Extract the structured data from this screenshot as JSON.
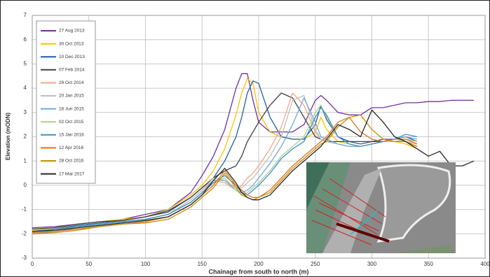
{
  "chart_data": {
    "type": "line",
    "y_label": "Elevation (mODN)",
    "x_label": "Chainage from south to north (m)",
    "xlim": [
      0,
      400
    ],
    "xticks": [
      0,
      50,
      100,
      150,
      200,
      250,
      300,
      350,
      400
    ],
    "ylim": [
      -3,
      7
    ],
    "yticks": [
      -3,
      -2,
      -1,
      0,
      1,
      2,
      3,
      4,
      5,
      6,
      7
    ],
    "grid": true,
    "legend": "upper left",
    "x": [
      0,
      20,
      40,
      60,
      80,
      100,
      120,
      140,
      150,
      160,
      170,
      180,
      185,
      190,
      195,
      200,
      210,
      220,
      230,
      240,
      250,
      255,
      260,
      270,
      280,
      290,
      300,
      310,
      320,
      330,
      340,
      350,
      360,
      370,
      380,
      390
    ],
    "series": [
      {
        "name": "27 Aug 2013",
        "color": "#7030a0",
        "values": [
          -1.75,
          -1.7,
          -1.6,
          -1.5,
          -1.4,
          -1.2,
          -1.0,
          -0.3,
          0.4,
          1.2,
          2.3,
          4.0,
          4.6,
          4.6,
          3.5,
          2.6,
          2.2,
          2.2,
          2.2,
          2.5,
          3.5,
          3.7,
          3.5,
          3.0,
          2.9,
          2.9,
          3.2,
          3.2,
          3.3,
          3.4,
          3.4,
          3.45,
          3.45,
          3.5,
          3.5,
          3.5
        ]
      },
      {
        "name": "30 Oct 2013",
        "color": "#ffc000",
        "values": [
          -1.85,
          -1.75,
          -1.6,
          -1.5,
          -1.4,
          -1.3,
          -1.0,
          -0.4,
          0.0,
          0.6,
          1.5,
          2.9,
          3.8,
          4.4,
          4.2,
          3.0,
          2.2,
          2.0,
          1.9,
          1.9,
          2.2,
          2.8,
          2.3,
          1.8,
          1.7,
          1.6,
          1.7,
          1.8,
          1.8,
          1.7,
          1.5,
          null,
          null,
          null,
          null,
          null
        ]
      },
      {
        "name": "10 Dec 2013",
        "color": "#1f5f9f",
        "values": [
          -1.9,
          -1.8,
          -1.65,
          -1.55,
          -1.45,
          -1.3,
          -1.05,
          -0.5,
          -0.1,
          0.3,
          1.0,
          2.0,
          2.8,
          3.8,
          4.3,
          4.2,
          2.8,
          2.0,
          1.9,
          1.9,
          2.5,
          3.3,
          2.7,
          2.0,
          1.8,
          1.7,
          1.8,
          1.9,
          1.9,
          2.0,
          1.8,
          null,
          null,
          null,
          null,
          null
        ]
      },
      {
        "name": "07 Feb 2014",
        "color": "#404040",
        "values": [
          -1.8,
          -1.75,
          -1.6,
          -1.5,
          -1.45,
          -1.3,
          -1.1,
          -0.5,
          -0.1,
          0.3,
          0.6,
          0.8,
          1.2,
          1.8,
          2.2,
          2.6,
          3.3,
          3.8,
          3.6,
          2.8,
          2.0,
          1.9,
          1.8,
          1.8,
          1.8,
          1.8,
          1.8,
          1.8,
          1.8,
          1.8,
          null,
          null,
          null,
          null,
          null,
          null
        ]
      },
      {
        "name": "29 Oct 2014",
        "color": "#f4a582",
        "values": [
          -1.9,
          -1.8,
          -1.7,
          -1.6,
          -1.5,
          -1.4,
          -1.2,
          -0.6,
          -0.2,
          0.2,
          0.1,
          -0.2,
          0.0,
          0.3,
          0.5,
          0.8,
          1.5,
          2.4,
          3.8,
          3.3,
          2.2,
          1.9,
          1.8,
          1.7,
          1.6,
          1.6,
          1.7,
          1.8,
          1.8,
          1.8,
          1.6,
          null,
          null,
          null,
          null,
          null
        ]
      },
      {
        "name": "20 Jan 2015",
        "color": "#bfbfbf",
        "values": [
          -1.95,
          -1.85,
          -1.7,
          -1.6,
          -1.5,
          -1.4,
          -1.2,
          -0.6,
          -0.2,
          0.3,
          0.2,
          -0.1,
          -0.1,
          0.1,
          0.3,
          0.6,
          1.2,
          2.0,
          3.5,
          3.7,
          2.3,
          1.9,
          1.8,
          1.7,
          1.6,
          1.6,
          1.7,
          1.8,
          1.8,
          1.8,
          1.7,
          null,
          null,
          null,
          null,
          null
        ]
      },
      {
        "name": "16 Jun 2015",
        "color": "#6fa8dc",
        "values": [
          -2.0,
          -1.9,
          -1.75,
          -1.6,
          -1.5,
          -1.4,
          -1.2,
          -0.7,
          -0.3,
          0.2,
          0.2,
          -0.2,
          -0.3,
          -0.2,
          0.0,
          0.3,
          0.9,
          1.6,
          2.5,
          3.6,
          2.6,
          2.0,
          1.9,
          1.7,
          1.6,
          1.6,
          1.7,
          1.8,
          1.9,
          2.0,
          1.9,
          null,
          null,
          null,
          null,
          null
        ]
      },
      {
        "name": "02 Oct 2015",
        "color": "#a9d18e",
        "values": [
          -1.95,
          -1.85,
          -1.7,
          -1.6,
          -1.5,
          -1.4,
          -1.2,
          -0.7,
          -0.3,
          0.1,
          0.3,
          -0.2,
          -0.4,
          -0.3,
          -0.1,
          0.1,
          0.6,
          1.2,
          1.6,
          2.0,
          3.0,
          3.3,
          2.8,
          2.0,
          1.7,
          1.6,
          1.7,
          1.8,
          1.8,
          1.9,
          1.8,
          null,
          null,
          null,
          null,
          null
        ]
      },
      {
        "name": "15 Jan 2016",
        "color": "#3f8fc4",
        "values": [
          -1.9,
          -1.8,
          -1.7,
          -1.6,
          -1.5,
          -1.4,
          -1.2,
          -0.7,
          -0.3,
          0.1,
          0.4,
          0.0,
          -0.3,
          -0.4,
          -0.2,
          0.0,
          0.5,
          1.1,
          1.5,
          1.8,
          2.8,
          3.2,
          2.9,
          2.0,
          1.7,
          1.6,
          1.7,
          1.8,
          1.9,
          2.1,
          2.0,
          null,
          null,
          null,
          null,
          null
        ]
      },
      {
        "name": "12 Apr 2016",
        "color": "#e07020",
        "values": [
          -1.95,
          -1.9,
          -1.8,
          -1.7,
          -1.6,
          -1.5,
          -1.3,
          -0.8,
          -0.4,
          0.0,
          0.6,
          0.0,
          -0.2,
          -0.4,
          -0.5,
          -0.5,
          -0.2,
          0.3,
          0.8,
          1.2,
          1.6,
          1.8,
          2.0,
          2.6,
          2.8,
          2.2,
          1.9,
          1.8,
          1.9,
          1.9,
          1.7,
          null,
          null,
          null,
          null,
          null
        ]
      },
      {
        "name": "28 Oct 2016",
        "color": "#c09000",
        "values": [
          -2.0,
          -1.95,
          -1.85,
          -1.7,
          -1.6,
          -1.55,
          -1.4,
          -0.9,
          -0.5,
          -0.1,
          0.5,
          -0.1,
          -0.4,
          -0.5,
          -0.6,
          -0.5,
          -0.3,
          0.2,
          0.7,
          1.1,
          1.5,
          1.7,
          1.8,
          2.4,
          2.8,
          2.9,
          2.3,
          1.9,
          1.8,
          1.8,
          1.6,
          null,
          null,
          null,
          null,
          null
        ]
      },
      {
        "name": "17 Mar 2017",
        "color": "#262626",
        "values": [
          -1.9,
          -1.85,
          -1.75,
          -1.65,
          -1.55,
          -1.45,
          -1.3,
          -0.8,
          -0.4,
          0.2,
          0.7,
          0.1,
          -0.3,
          -0.5,
          -0.6,
          -0.6,
          -0.4,
          0.1,
          0.6,
          1.0,
          1.4,
          1.6,
          1.9,
          2.5,
          2.3,
          2.0,
          3.1,
          2.6,
          2.0,
          1.8,
          1.5,
          1.2,
          1.4,
          0.8,
          0.8,
          1.0
        ]
      }
    ]
  }
}
